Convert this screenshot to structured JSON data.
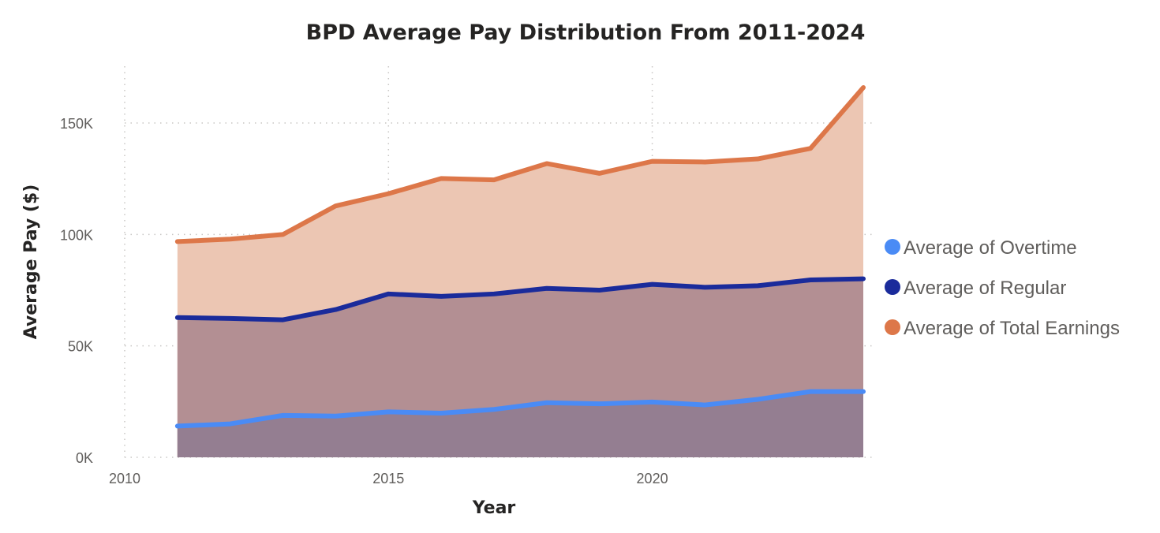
{
  "chart_data": {
    "type": "area",
    "title": "BPD Average Pay Distribution From 2011-2024",
    "xlabel": "Year",
    "ylabel": "Average Pay ($)",
    "x": [
      2011,
      2012,
      2013,
      2014,
      2015,
      2016,
      2017,
      2018,
      2019,
      2020,
      2021,
      2022,
      2023,
      2024
    ],
    "xlim": [
      2010,
      2024
    ],
    "ylim": [
      0,
      175000
    ],
    "x_ticks": [
      2010,
      2015,
      2020
    ],
    "x_tick_labels": [
      "2010",
      "2015",
      "2020"
    ],
    "y_ticks": [
      0,
      50000,
      100000,
      150000
    ],
    "y_tick_labels": [
      "0K",
      "50K",
      "100K",
      "150K"
    ],
    "grid": true,
    "legend_position": "right",
    "series": [
      {
        "name": "Average of Overtime",
        "color": "#4a8bf5",
        "fill": "#947e91",
        "values": [
          14000,
          15000,
          18800,
          18500,
          20400,
          19800,
          21500,
          24500,
          24000,
          24800,
          23500,
          26000,
          29500,
          29500
        ]
      },
      {
        "name": "Average of Regular",
        "color": "#1a2b9b",
        "fill": "#b38f93",
        "values": [
          62700,
          62300,
          61700,
          66300,
          73300,
          72200,
          73300,
          75800,
          75000,
          77600,
          76300,
          77000,
          79600,
          80100
        ]
      },
      {
        "name": "Average of Total Earnings",
        "color": "#dd7749",
        "fill": "#ecc6b3",
        "values": [
          96800,
          97900,
          100000,
          112800,
          118300,
          125100,
          124500,
          131800,
          127400,
          132800,
          132500,
          133900,
          138600,
          165900
        ]
      }
    ]
  }
}
